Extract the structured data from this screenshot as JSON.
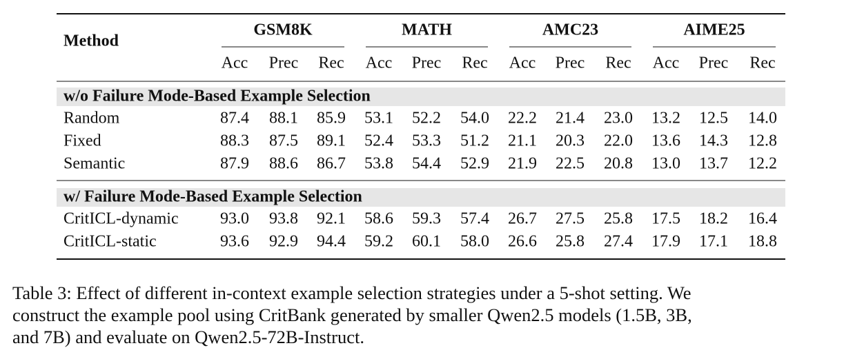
{
  "table": {
    "method_header": "Method",
    "groups": [
      "GSM8K",
      "MATH",
      "AMC23",
      "AIME25"
    ],
    "metrics": [
      "Acc",
      "Prec",
      "Rec"
    ],
    "sections": [
      {
        "title": "w/o Failure Mode-Based Example Selection",
        "rows": [
          [
            "Random",
            "87.4",
            "88.1",
            "85.9",
            "53.1",
            "52.2",
            "54.0",
            "22.2",
            "21.4",
            "23.0",
            "13.2",
            "12.5",
            "14.0"
          ],
          [
            "Fixed",
            "88.3",
            "87.5",
            "89.1",
            "52.4",
            "53.3",
            "51.2",
            "21.1",
            "20.3",
            "22.0",
            "13.6",
            "14.3",
            "12.8"
          ],
          [
            "Semantic",
            "87.9",
            "88.6",
            "86.7",
            "53.8",
            "54.4",
            "52.9",
            "21.9",
            "22.5",
            "20.8",
            "13.0",
            "13.7",
            "12.2"
          ]
        ]
      },
      {
        "title": "w/ Failure Mode-Based Example Selection",
        "rows": [
          [
            "CritICL-dynamic",
            "93.0",
            "93.8",
            "92.1",
            "58.6",
            "59.3",
            "57.4",
            "26.7",
            "27.5",
            "25.8",
            "17.5",
            "18.2",
            "16.4"
          ],
          [
            "CritICL-static",
            "93.6",
            "92.9",
            "94.4",
            "59.2",
            "60.1",
            "58.0",
            "26.6",
            "25.8",
            "27.4",
            "17.9",
            "17.1",
            "18.8"
          ]
        ]
      }
    ]
  },
  "caption": {
    "lines": [
      "Table 3: Effect of different in-context example selection strategies under a 5-shot setting. We",
      "construct the example pool using CritBank generated by smaller Qwen2.5 models (1.5B, 3B,",
      "and 7B) and evaluate on Qwen2.5-72B-Instruct."
    ]
  }
}
